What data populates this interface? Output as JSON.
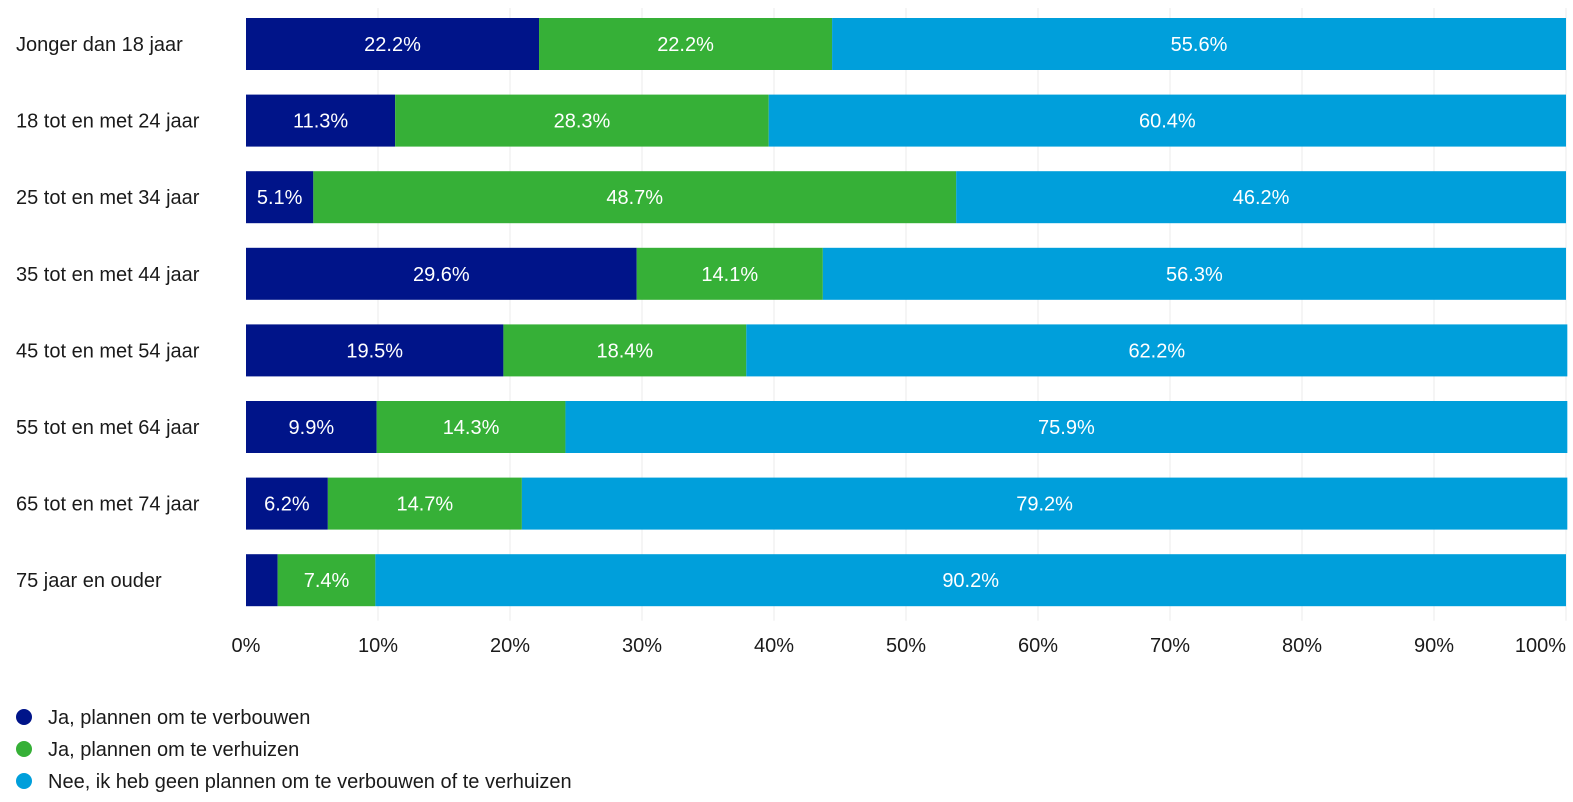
{
  "chart_data": {
    "type": "bar",
    "orientation": "horizontal",
    "stacked": true,
    "categories": [
      "Jonger dan 18 jaar",
      "18 tot en met 24 jaar",
      "25 tot en met 34 jaar",
      "35 tot en met 44 jaar",
      "45 tot en met 54 jaar",
      "55 tot en met 64 jaar",
      "65 tot en met 74 jaar",
      "75 jaar en ouder"
    ],
    "series": [
      {
        "name": "Ja, plannen om te verbouwen",
        "color": "#001489",
        "values": [
          22.2,
          11.3,
          5.1,
          29.6,
          19.5,
          9.9,
          6.2,
          2.4
        ],
        "labels": [
          "22.2%",
          "11.3%",
          "5.1%",
          "29.6%",
          "19.5%",
          "9.9%",
          "6.2%",
          ""
        ]
      },
      {
        "name": "Ja, plannen om te verhuizen",
        "color": "#36b037",
        "values": [
          22.2,
          28.3,
          48.7,
          14.1,
          18.4,
          14.3,
          14.7,
          7.4
        ],
        "labels": [
          "22.2%",
          "28.3%",
          "48.7%",
          "14.1%",
          "18.4%",
          "14.3%",
          "14.7%",
          "7.4%"
        ]
      },
      {
        "name": "Nee, ik heb geen plannen om te verbouwen of te verhuizen",
        "color": "#009fdb",
        "values": [
          55.6,
          60.4,
          46.2,
          56.3,
          62.2,
          75.9,
          79.2,
          90.2
        ],
        "labels": [
          "55.6%",
          "60.4%",
          "46.2%",
          "56.3%",
          "62.2%",
          "75.9%",
          "79.2%",
          "90.2%"
        ]
      }
    ],
    "x_ticks": [
      "0%",
      "10%",
      "20%",
      "30%",
      "40%",
      "50%",
      "60%",
      "70%",
      "80%",
      "90%",
      "100%"
    ],
    "xlim": [
      0,
      100
    ],
    "grid": true,
    "legend_position": "bottom-left"
  }
}
